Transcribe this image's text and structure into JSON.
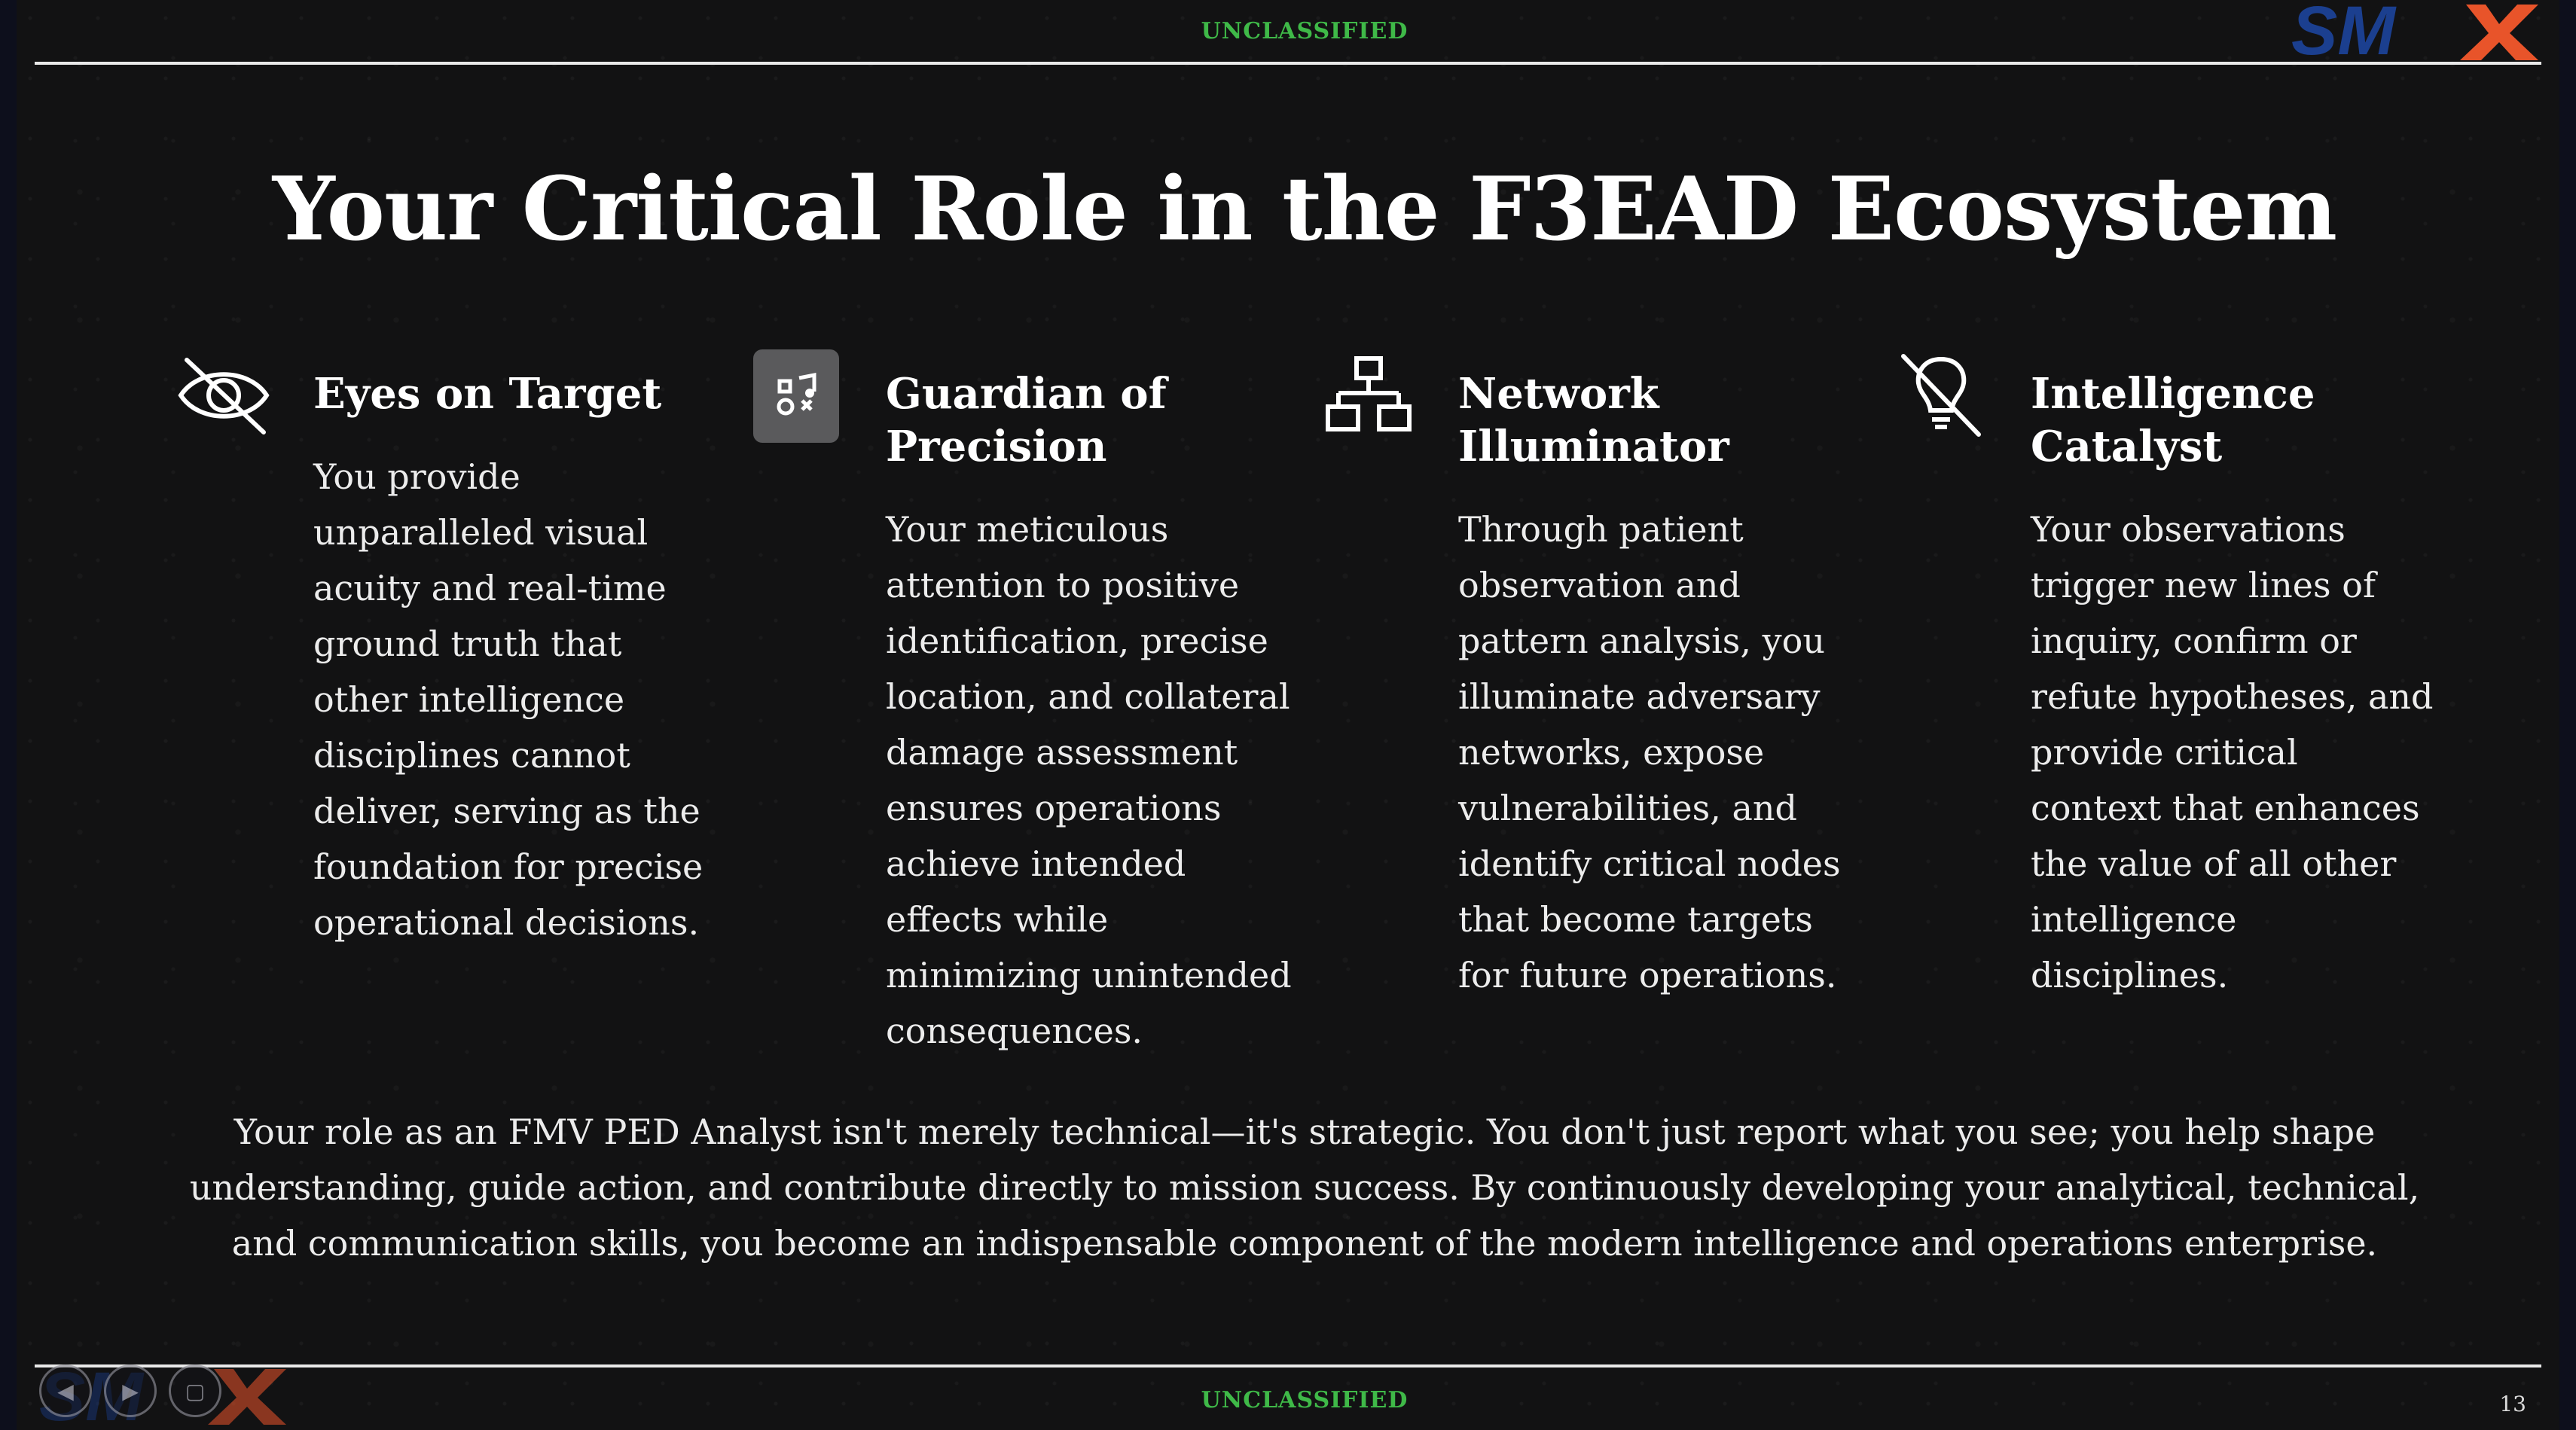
{
  "classification": {
    "top": "UNCLASSIFIED",
    "bottom": "UNCLASSIFIED"
  },
  "title": "Your Critical Role in the F3EAD Ecosystem",
  "cards": [
    {
      "icon": "eye-slash-icon",
      "title": "Eyes on Target",
      "body": "You provide unparalleled visual acuity and real-time ground truth that other intelligence disciplines cannot deliver, serving as the foundation for precise operational decisions."
    },
    {
      "icon": "music-note-shapes-icon",
      "title": "Guardian of Precision",
      "body": "Your meticulous attention to positive identification, precise location, and collateral damage assessment ensures operations achieve intended effects while minimizing unintended consequences."
    },
    {
      "icon": "network-hierarchy-icon",
      "title": "Network Illuminator",
      "body": "Through patient observation and pattern analysis, you illuminate adversary networks, expose vulnerabilities, and identify critical nodes that become targets for future operations."
    },
    {
      "icon": "lightbulb-slash-icon",
      "title": "Intelligence Catalyst",
      "body": "Your observations trigger new lines of inquiry, confirm or refute hypotheses, and provide critical context that enhances the value of all other intelligence disciplines."
    }
  ],
  "summary": "Your role as an FMV PED Analyst isn't merely technical—it's strategic. You don't just report what you see; you help shape understanding, guide action, and contribute directly to mission success. By continuously developing your analytical, technical, and communication skills, you become an indispensable component of the modern intelligence and operations enterprise.",
  "page_number": "13",
  "logo": {
    "text": "SMX",
    "colors": {
      "blue": "#1b3f8f",
      "orange": "#e8542a"
    }
  },
  "colors": {
    "classification_green": "#3fb948",
    "background": "#121213"
  }
}
